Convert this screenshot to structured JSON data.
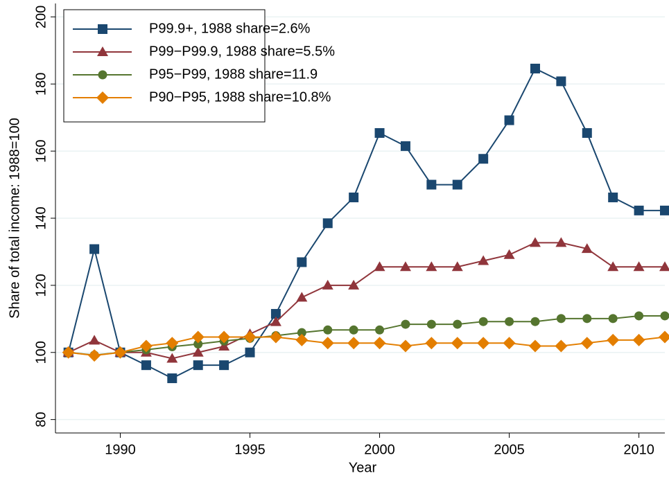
{
  "chart_data": {
    "type": "line",
    "x_label": "Year",
    "y_label": "Share of total income: 1988=100",
    "x": [
      1988,
      1989,
      1990,
      1991,
      1992,
      1993,
      1994,
      1995,
      1996,
      1997,
      1998,
      1999,
      2000,
      2001,
      2002,
      2003,
      2004,
      2005,
      2006,
      2007,
      2008,
      2009,
      2010,
      2011
    ],
    "series": [
      {
        "name": "P99.9+, 1988 share=2.6%",
        "color": "#1a476f",
        "marker": "square",
        "values": [
          100,
          130.8,
          100,
          96.2,
          92.3,
          96.2,
          96.2,
          100,
          111.5,
          126.9,
          138.5,
          146.2,
          165.4,
          161.5,
          150,
          150,
          157.7,
          169.2,
          184.6,
          180.8,
          165.4,
          146.2,
          142.3,
          142.3
        ]
      },
      {
        "name": "P99−P99.9, 1988 share=5.5%",
        "color": "#90353b",
        "marker": "triangle",
        "values": [
          100,
          103.6,
          100,
          100,
          98.2,
          100,
          101.8,
          105.5,
          109.1,
          116.4,
          120,
          120,
          125.5,
          125.5,
          125.5,
          125.5,
          127.3,
          129.1,
          132.7,
          132.7,
          130.9,
          125.5,
          125.5,
          125.5
        ]
      },
      {
        "name": "P95−P99, 1988 share=11.9",
        "color": "#55752f",
        "marker": "circle",
        "values": [
          100,
          99.2,
          100,
          100.8,
          101.7,
          102.5,
          103.4,
          104.2,
          105,
          105.9,
          106.7,
          106.7,
          106.7,
          108.4,
          108.4,
          108.4,
          109.2,
          109.2,
          109.2,
          110.1,
          110.1,
          110.1,
          110.9,
          110.9
        ]
      },
      {
        "name": "P90−P95, 1988 share=10.8%",
        "color": "#e37e00",
        "marker": "diamond",
        "values": [
          100,
          99.1,
          100,
          101.9,
          102.8,
          104.6,
          104.6,
          104.6,
          104.6,
          103.7,
          102.8,
          102.8,
          102.8,
          101.9,
          102.8,
          102.8,
          102.8,
          102.8,
          101.9,
          101.9,
          102.8,
          103.7,
          103.7,
          104.6
        ]
      }
    ],
    "xlim": [
      1987.5,
      2011
    ],
    "ylim": [
      76,
      204
    ],
    "xticks": [
      1990,
      1995,
      2000,
      2005,
      2010
    ],
    "yticks": [
      80,
      100,
      120,
      140,
      160,
      180,
      200
    ],
    "grid": true,
    "legend": "upper left"
  }
}
